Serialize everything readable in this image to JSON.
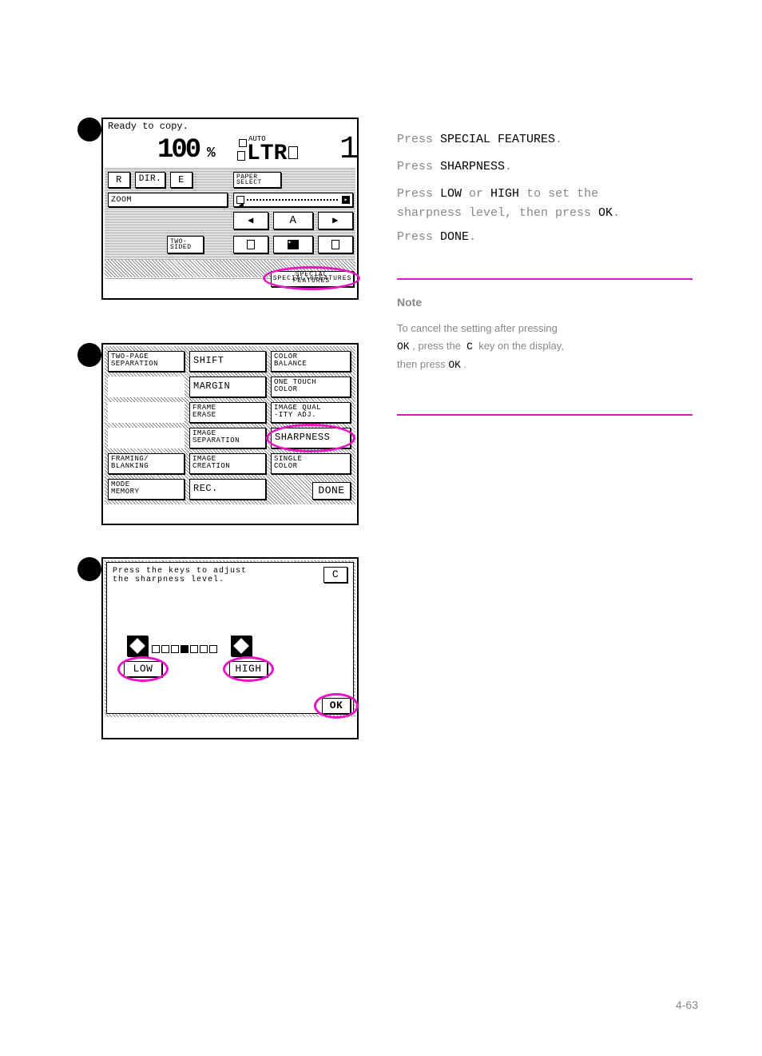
{
  "colors": {
    "highlight": "#e815c4",
    "panel_border": "#000000",
    "bg": "#ffffff"
  },
  "panel1": {
    "status": "Ready to copy.",
    "percent": "100",
    "percent_sym": "%",
    "auto": "AUTO",
    "paper": "LTR",
    "buttons": {
      "r": "R",
      "dir": "DIR.",
      "e": "E",
      "paper_select": "PAPER\nSELECT",
      "zoom": "ZOOM",
      "two_sided": "TWO-\nSIDED",
      "a": "A",
      "special": "SPECIAL FEATURES"
    }
  },
  "panel2": {
    "buttons": {
      "two_page": "TWO-PAGE\nSEPARATION",
      "shift": "SHIFT",
      "color_balance": "COLOR\nBALANCE",
      "margin": "MARGIN",
      "one_touch": "ONE TOUCH\nCOLOR",
      "frame_erase": "FRAME\nERASE",
      "image_qual": "IMAGE QUAL\n-ITY ADJ.",
      "image_sep": "IMAGE\nSEPARATION",
      "sharpness": "SHARPNESS",
      "framing": "FRAMING/\nBLANKING",
      "image_creation": "IMAGE\nCREATION",
      "single_color": "SINGLE\nCOLOR",
      "mode_memory": "MODE\nMEMORY",
      "rec": "REC.",
      "done": "DONE"
    }
  },
  "panel3": {
    "instruction": "Press the keys to adjust\nthe sharpness level.",
    "c": "C",
    "low": "LOW",
    "high": "HIGH",
    "ok": "OK",
    "level_index": 3,
    "level_count": 7
  },
  "right": {
    "line1_pre": " Press ",
    "line1_hi": "SPECIAL FEATURES",
    "line1_post": ".",
    "line2_pre": " Press ",
    "line2_hi": "SHARPNESS",
    "line2_post": ".",
    "line3_pre": " Press ",
    "line3_hi1": "LOW",
    "line3_mid": " or ",
    "line3_hi2": "HIGH",
    "line3_post": "  to set the",
    "line4": "  sharpness level, then press ",
    "line4_hi": "OK",
    "line4_post": ".",
    "line5_pre": " Press ",
    "line5_hi": "DONE",
    "line5_post": ".",
    "note_title": "Note",
    "note_body": "To cancel the setting after pressing OK , press the   C   key on the display, then press  OK ."
  },
  "page_no": "4-63"
}
